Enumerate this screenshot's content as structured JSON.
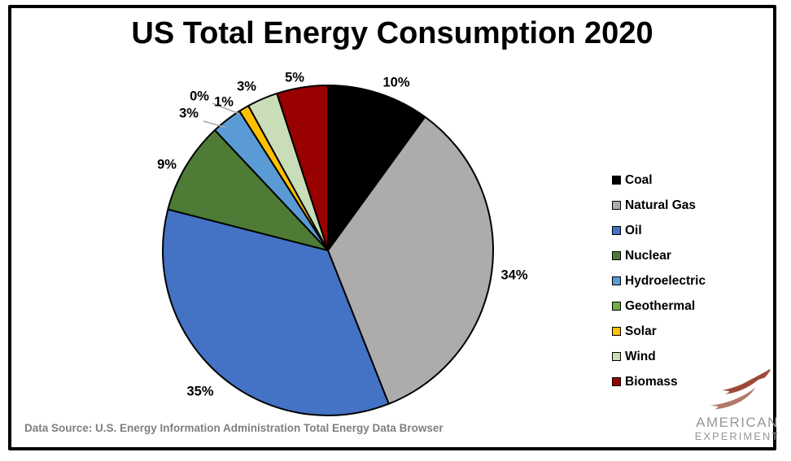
{
  "title": "US Total Energy Consumption 2020",
  "chart_data": {
    "type": "pie",
    "title": "US Total Energy Consumption 2020",
    "categories": [
      "Coal",
      "Natural Gas",
      "Oil",
      "Nuclear",
      "Hydroelectric",
      "Geothermal",
      "Solar",
      "Wind",
      "Biomass"
    ],
    "values": [
      10,
      34,
      35,
      9,
      3,
      0,
      1,
      3,
      5
    ],
    "labels": [
      "10%",
      "34%",
      "35%",
      "9%",
      "3%",
      "0%",
      "1%",
      "3%",
      "5%"
    ],
    "unit": "%",
    "colors": [
      "#000000",
      "#ACACAC",
      "#4472C4",
      "#4E7B35",
      "#5B9BD5",
      "#70AD47",
      "#FFC000",
      "#C9DDB8",
      "#990000"
    ],
    "start_angle_deg": 0,
    "direction": "clockwise",
    "legend_position": "right",
    "slice_border_color": "#000000"
  },
  "footer": {
    "data_source": "Data Source: U.S. Energy Information Administration Total Energy Data Browser"
  },
  "logo": {
    "line1": "AMERICAN",
    "line2": "EXPERIMENT",
    "accent_dark": "#9C4A38",
    "accent_light": "#B07A68",
    "text_color": "#979797"
  }
}
